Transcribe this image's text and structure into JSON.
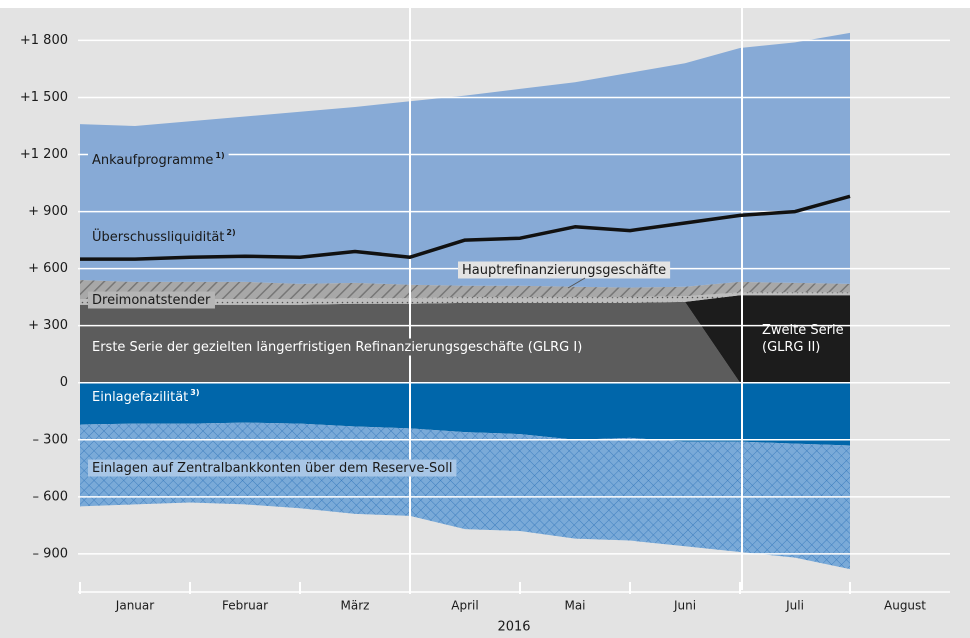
{
  "chart_data": {
    "type": "area",
    "x_label": "2016",
    "categories": [
      null,
      "Januar",
      null,
      "Februar",
      null,
      "März",
      null,
      "April",
      null,
      "Mai",
      null,
      "Juni",
      null,
      "Juli",
      null,
      "August"
    ],
    "ylim": [
      -1090,
      1960
    ],
    "yticks": [
      {
        "value": 1800,
        "label": "+1 800"
      },
      {
        "value": 1500,
        "label": "+1 500"
      },
      {
        "value": 1200,
        "label": "+1 200"
      },
      {
        "value": 900,
        "label": "+ 900"
      },
      {
        "value": 600,
        "label": "+ 600"
      },
      {
        "value": 300,
        "label": "+ 300"
      },
      0,
      {
        "value": -300,
        "label": "– 300"
      },
      {
        "value": -600,
        "label": "– 600"
      },
      {
        "value": -900,
        "label": "– 900"
      }
    ],
    "grid": true,
    "series": [
      {
        "name": "Erste Serie der gezielten längerfristigen Refinanzierungsgeschäfte (GLRG I)",
        "kind": "area",
        "stack": "pos",
        "color": "#5c5c5c",
        "values": [
          410,
          410,
          410,
          410,
          410,
          415,
          415,
          420,
          420,
          420,
          420,
          425,
          0,
          0,
          0,
          null
        ]
      },
      {
        "name": "Zweite Serie (GLRG II)",
        "kind": "area",
        "stack": "pos",
        "color": "#1c1c1c",
        "values": [
          0,
          0,
          0,
          0,
          0,
          0,
          0,
          0,
          0,
          0,
          0,
          0,
          460,
          460,
          460,
          null
        ]
      },
      {
        "name": "Dreimonatstender",
        "kind": "area",
        "stack": "pos",
        "color": "#b5b5b5",
        "pattern": "dots",
        "values": [
          30,
          30,
          30,
          30,
          30,
          30,
          30,
          30,
          30,
          30,
          30,
          30,
          15,
          15,
          15,
          null
        ]
      },
      {
        "name": "Hauptrefinanzierungsgeschäfte",
        "kind": "area",
        "stack": "pos",
        "color": "#9c9c9c",
        "pattern": "hatch",
        "values": [
          100,
          90,
          90,
          90,
          80,
          80,
          70,
          60,
          60,
          55,
          50,
          50,
          55,
          50,
          45,
          null
        ]
      },
      {
        "name": "Ankaufprogramme",
        "note": "1)",
        "kind": "area",
        "stack": "pos",
        "color": "#87aad6",
        "values": [
          820,
          820,
          845,
          870,
          905,
          925,
          965,
          1000,
          1035,
          1075,
          1130,
          1175,
          1230,
          1265,
          1320,
          null
        ]
      },
      {
        "name": "Einlagefazilität",
        "note": "3)",
        "kind": "area",
        "stack": "neg",
        "color": "#0066aa",
        "values": [
          -220,
          -215,
          -215,
          -210,
          -215,
          -230,
          -240,
          -260,
          -270,
          -300,
          -290,
          -310,
          -310,
          -320,
          -330,
          null
        ]
      },
      {
        "name": "Einlagen auf Zentralbankkonten über dem Reserve-Soll",
        "kind": "area",
        "stack": "neg",
        "color": "#7aaad8",
        "pattern": "cross",
        "values": [
          -430,
          -425,
          -415,
          -430,
          -445,
          -460,
          -460,
          -510,
          -510,
          -520,
          -540,
          -550,
          -580,
          -600,
          -650,
          null
        ]
      },
      {
        "name": "Überschussliquidität",
        "note": "2)",
        "kind": "line",
        "color": "#111111",
        "values": [
          650,
          650,
          660,
          665,
          660,
          690,
          660,
          750,
          760,
          820,
          800,
          840,
          880,
          900,
          980,
          null
        ]
      }
    ]
  }
}
